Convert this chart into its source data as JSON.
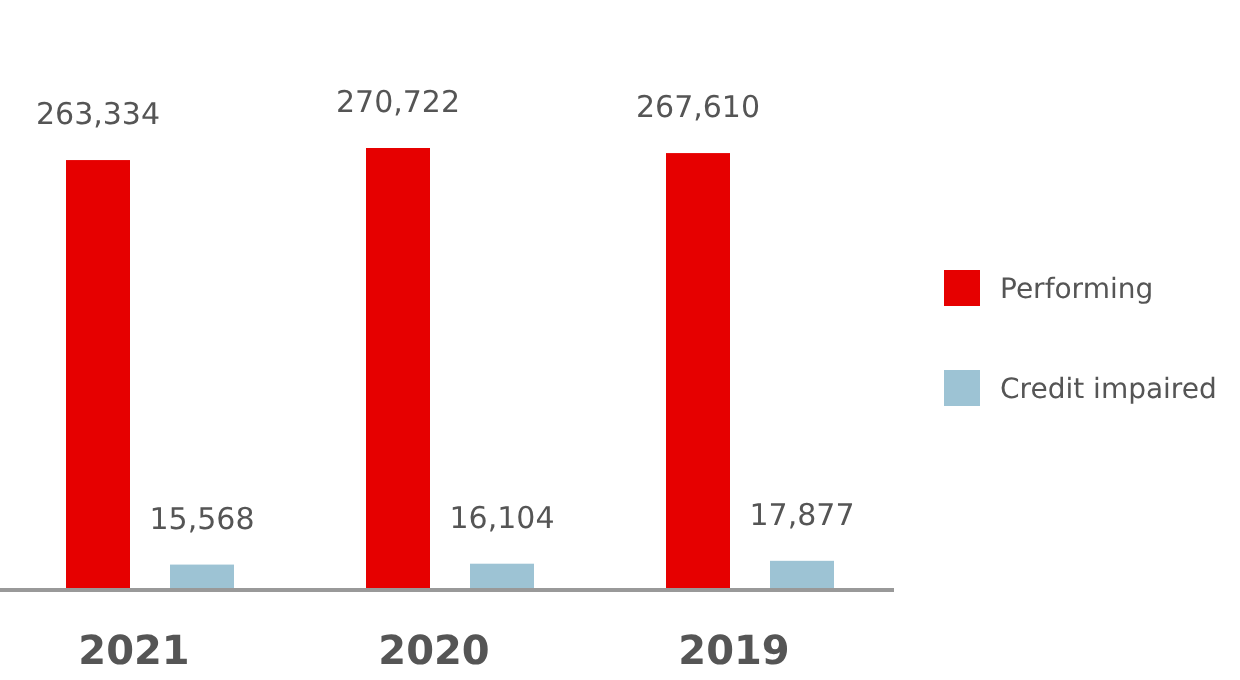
{
  "chart_data": {
    "type": "bar",
    "categories": [
      "2021",
      "2020",
      "2019"
    ],
    "series": [
      {
        "name": "Performing",
        "color": "#e60000",
        "values": [
          263334,
          270722,
          267610
        ],
        "value_labels": [
          "263,334",
          "270,722",
          "267,610"
        ]
      },
      {
        "name": "Credit impaired",
        "color": "#9dc3d4",
        "values": [
          15568,
          16104,
          17877
        ],
        "value_labels": [
          "15,568",
          "16,104",
          "17,877"
        ]
      }
    ],
    "legend": "right"
  }
}
